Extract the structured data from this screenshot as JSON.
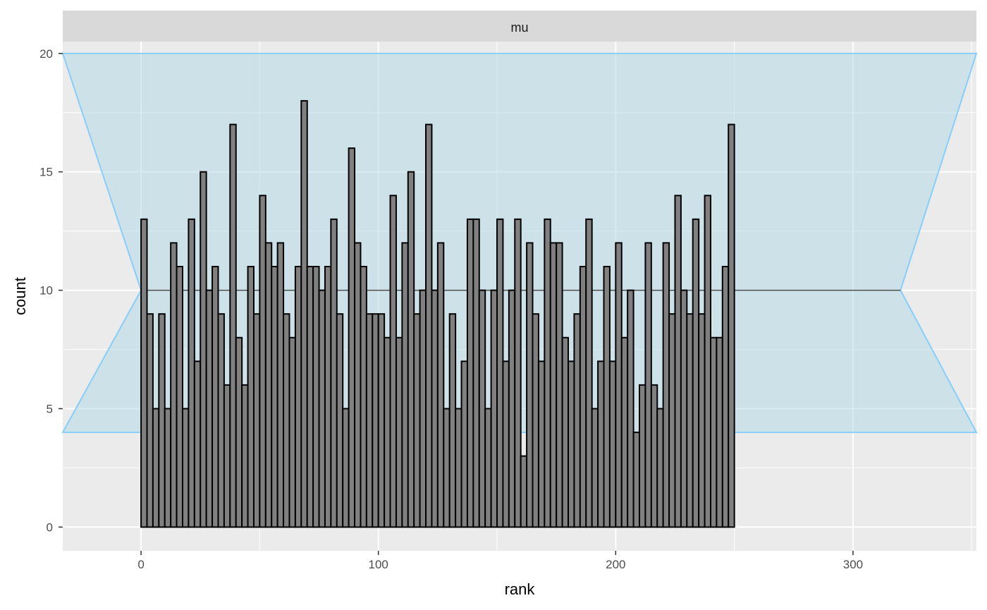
{
  "chart_data": {
    "type": "bar",
    "facet_label": "mu",
    "xlabel": "rank",
    "ylabel": "count",
    "xlim": [
      -33,
      352
    ],
    "ylim": [
      -1,
      20.5
    ],
    "x_ticks": [
      0,
      100,
      200,
      300
    ],
    "y_ticks": [
      0,
      5,
      10,
      15,
      20
    ],
    "x_tick_labels": [
      "0",
      "100",
      "200",
      "300"
    ],
    "y_tick_labels": [
      "0",
      "5",
      "10",
      "15",
      "20"
    ],
    "bin_width": 2.5,
    "bin_start": 0,
    "values": [
      13,
      9,
      5,
      9,
      5,
      12,
      11,
      5,
      13,
      7,
      15,
      10,
      11,
      9,
      6,
      17,
      8,
      6,
      11,
      9,
      14,
      12,
      11,
      12,
      9,
      8,
      11,
      18,
      11,
      11,
      10,
      11,
      13,
      9,
      5,
      16,
      12,
      11,
      9,
      9,
      9,
      8,
      14,
      8,
      12,
      15,
      9,
      10,
      17,
      10,
      12,
      5,
      9,
      5,
      7,
      13,
      13,
      10,
      5,
      10,
      13,
      7,
      10,
      13,
      3,
      12,
      9,
      7,
      13,
      12,
      12,
      8,
      7,
      9,
      11,
      13,
      5,
      7,
      11,
      7,
      12,
      8,
      10,
      4,
      6,
      12,
      6,
      5,
      12,
      9,
      14,
      10,
      9,
      13,
      9,
      14,
      8,
      8,
      11,
      17
    ],
    "expected_count": 10,
    "interval": {
      "lower": 4,
      "upper": 20,
      "x_left": -33,
      "x_right": 352,
      "x_pinch_left": 0,
      "x_pinch_right": 320
    },
    "grid": true,
    "colors": {
      "panel_background": "#ebebeb",
      "grid_major": "#ffffff",
      "strip_background": "#d9d9d9",
      "bar_fill": "#808080",
      "bar_stroke": "#000000",
      "band_fill": "#add8e6",
      "band_stroke": "#87cefa",
      "expected_line": "#4d4d4d"
    }
  }
}
